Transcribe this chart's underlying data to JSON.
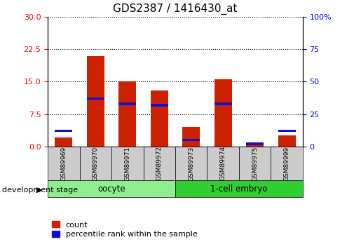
{
  "title": "GDS2387 / 1416430_at",
  "samples": [
    "GSM89969",
    "GSM89970",
    "GSM89971",
    "GSM89972",
    "GSM89973",
    "GSM89974",
    "GSM89975",
    "GSM89999"
  ],
  "count_values": [
    2.0,
    21.0,
    15.0,
    13.0,
    4.5,
    15.5,
    1.0,
    2.5
  ],
  "percentile_values": [
    12,
    37,
    33,
    32,
    5,
    33,
    2,
    12
  ],
  "groups": [
    {
      "label": "oocyte",
      "start": 0,
      "end": 4,
      "color": "#90EE90"
    },
    {
      "label": "1-cell embryo",
      "start": 4,
      "end": 8,
      "color": "#32CD32"
    }
  ],
  "left_ylim": [
    0,
    30
  ],
  "right_ylim": [
    0,
    100
  ],
  "left_yticks": [
    0,
    7.5,
    15,
    22.5,
    30
  ],
  "right_yticks": [
    0,
    25,
    50,
    75,
    100
  ],
  "bar_color_red": "#CC2200",
  "bar_color_blue": "#1111CC",
  "bar_width": 0.55,
  "grid_color": "black",
  "xlabel_stage": "development stage",
  "legend_count": "count",
  "legend_percentile": "percentile rank within the sample",
  "title_fontsize": 11,
  "tick_fontsize": 8,
  "sample_fontsize": 6.5,
  "group_fontsize": 8.5,
  "legend_fontsize": 8
}
